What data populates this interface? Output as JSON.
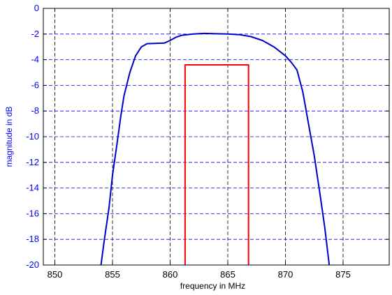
{
  "chart_data": {
    "type": "line",
    "title": "",
    "xlabel": "frequency in MHz",
    "ylabel": "magnitude in dB",
    "xlim": [
      849,
      879
    ],
    "ylim": [
      -20,
      0
    ],
    "x_ticks": [
      850,
      855,
      860,
      865,
      870,
      875
    ],
    "y_ticks": [
      0,
      -2,
      -4,
      -6,
      -8,
      -10,
      -12,
      -14,
      -16,
      -18,
      -20
    ],
    "grid": {
      "x": true,
      "y": true,
      "style": "dashed"
    },
    "colors": {
      "frame": "#000000",
      "x_grid": "#000000",
      "y_grid": "#0000ff",
      "x_tick_labels": "#000000",
      "y_tick_labels": "#0000ff",
      "xlabel": "#000000",
      "ylabel": "#0000ff"
    },
    "series": [
      {
        "color": "#0000cc",
        "points": [
          [
            854.0,
            -20.0
          ],
          [
            854.3,
            -18.0
          ],
          [
            854.7,
            -15.5
          ],
          [
            855.0,
            -13.0
          ],
          [
            855.4,
            -10.5
          ],
          [
            855.7,
            -8.5
          ],
          [
            856.0,
            -6.8
          ],
          [
            856.5,
            -5.0
          ],
          [
            857.0,
            -3.7
          ],
          [
            857.5,
            -3.0
          ],
          [
            858.0,
            -2.75
          ],
          [
            859.5,
            -2.7
          ],
          [
            860.0,
            -2.5
          ],
          [
            860.5,
            -2.25
          ],
          [
            861.0,
            -2.1
          ],
          [
            862.0,
            -2.0
          ],
          [
            863.0,
            -1.95
          ],
          [
            864.0,
            -1.98
          ],
          [
            865.0,
            -2.0
          ],
          [
            866.0,
            -2.05
          ],
          [
            867.0,
            -2.2
          ],
          [
            868.0,
            -2.5
          ],
          [
            869.0,
            -3.0
          ],
          [
            870.0,
            -3.7
          ],
          [
            870.5,
            -4.2
          ],
          [
            871.0,
            -4.8
          ],
          [
            871.5,
            -6.5
          ],
          [
            872.0,
            -9.0
          ],
          [
            872.5,
            -11.5
          ],
          [
            873.0,
            -14.5
          ],
          [
            873.4,
            -17.0
          ],
          [
            873.8,
            -20.0
          ]
        ]
      },
      {
        "color": "#ff0000",
        "points": [
          [
            861.3,
            -20.0
          ],
          [
            861.3,
            -4.4
          ],
          [
            866.8,
            -4.4
          ],
          [
            866.8,
            -20.0
          ]
        ]
      }
    ]
  }
}
